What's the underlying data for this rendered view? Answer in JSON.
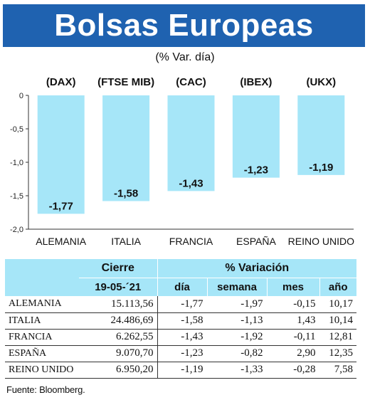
{
  "header": {
    "title": "Bolsas Europeas",
    "subtitle": "(% Var. día)"
  },
  "chart_data": {
    "type": "bar",
    "title": "Bolsas Europeas",
    "subtitle": "(% Var. día)",
    "categories": [
      "ALEMANIA",
      "ITALIA",
      "FRANCIA",
      "ESPAÑA",
      "REINO UNIDO"
    ],
    "index_labels": [
      "(DAX)",
      "(FTSE MIB)",
      "(CAC)",
      "(IBEX)",
      "(UKX)"
    ],
    "values": [
      -1.77,
      -1.58,
      -1.43,
      -1.23,
      -1.19
    ],
    "value_labels": [
      "-1,77",
      "-1,58",
      "-1,43",
      "-1,23",
      "-1,19"
    ],
    "yticks": [
      0,
      -0.5,
      -1.0,
      -1.5,
      -2.0
    ],
    "ytick_labels": [
      "0",
      "-0,5",
      "-1,0",
      "-1,5",
      "-2,0"
    ],
    "ylim": [
      -2.0,
      0
    ],
    "grid": false,
    "legend": "none",
    "bar_color": "#a6e6f8"
  },
  "table": {
    "group_headers": {
      "cierre": "Cierre",
      "variacion": "% Variación"
    },
    "sub_headers": {
      "date": "19-05-´21",
      "dia": "día",
      "semana": "semana",
      "mes": "mes",
      "ano": "año"
    },
    "rows": [
      {
        "name": "ALEMANIA",
        "cierre": "15.113,56",
        "dia": "-1,77",
        "semana": "-1,97",
        "mes": "-0,15",
        "ano": "10,17"
      },
      {
        "name": "ITALIA",
        "cierre": "24.486,69",
        "dia": "-1,58",
        "semana": "-1,13",
        "mes": "1,43",
        "ano": "10,14"
      },
      {
        "name": "FRANCIA",
        "cierre": "6.262,55",
        "dia": "-1,43",
        "semana": "-1,92",
        "mes": "-0,11",
        "ano": "12,81"
      },
      {
        "name": "ESPAÑA",
        "cierre": "9.070,70",
        "dia": "-1,23",
        "semana": "-0,82",
        "mes": "2,90",
        "ano": "12,35"
      },
      {
        "name": "REINO UNIDO",
        "cierre": "6.950,20",
        "dia": "-1,19",
        "semana": "-1,33",
        "mes": "-0,28",
        "ano": "7,58"
      }
    ]
  },
  "source": "Fuente: Bloomberg.",
  "colors": {
    "title_bg": "#1f62b0",
    "bar": "#a6e6f8",
    "header_bg": "#a6e6f8"
  }
}
